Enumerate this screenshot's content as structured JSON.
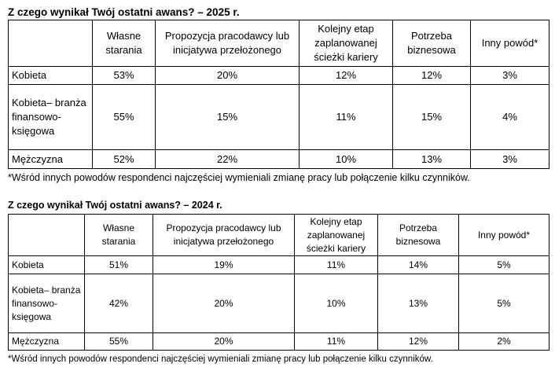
{
  "section_2025": {
    "title": "Z czego wynikał Twój ostatni awans? – 2025 r.",
    "headers": [
      "",
      "Własne starania",
      "Propozycja pracodawcy lub inicjatywa przełożonego",
      "Kolejny etap zaplanowanej ścieżki kariery",
      "Potrzeba biznesowa",
      "Inny powód*"
    ],
    "rows": [
      {
        "label": "Kobieta",
        "values": [
          "53%",
          "20%",
          "12%",
          "12%",
          "3%"
        ]
      },
      {
        "label": "Kobieta– branża finansowo-księgowa",
        "values": [
          "55%",
          "15%",
          "11%",
          "15%",
          "4%"
        ]
      },
      {
        "label": "Mężczyzna",
        "values": [
          "52%",
          "22%",
          "10%",
          "13%",
          "3%"
        ]
      }
    ],
    "footnote": "*Wśród innych powodów respondenci najczęściej wymieniali zmianę pracy lub połączenie kilku czynników."
  },
  "section_2024": {
    "title": "Z czego wynikał Twój ostatni awans? – 2024 r.",
    "headers": [
      "",
      "Własne starania",
      "Propozycja pracodawcy lub inicjatywa przełożonego",
      "Kolejny etap zaplanowanej ścieżki kariery",
      "Potrzeba biznesowa",
      "Inny powód*"
    ],
    "rows": [
      {
        "label": "Kobieta",
        "values": [
          "51%",
          "19%",
          "11%",
          "14%",
          "5%"
        ]
      },
      {
        "label": "Kobieta– branża finansowo-księgowa",
        "values": [
          "42%",
          "20%",
          "10%",
          "13%",
          "5%"
        ]
      },
      {
        "label": "Mężczyzna",
        "values": [
          "55%",
          "20%",
          "11%",
          "12%",
          "2%"
        ]
      }
    ],
    "footnote": "*Wśród innych powodów respondenci najczęściej wymieniali zmianę pracy lub połączenie kilku czynników."
  }
}
